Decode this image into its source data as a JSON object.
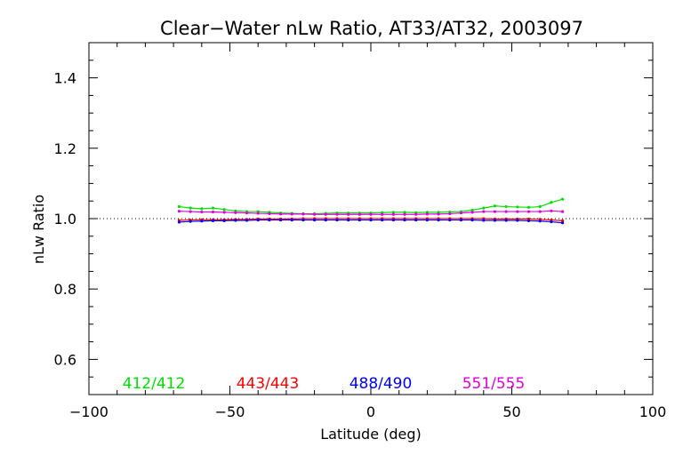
{
  "chart_data": {
    "type": "line",
    "title": "Clear−Water nLw Ratio, AT33/AT32, 2003097",
    "xlabel": "Latitude (deg)",
    "ylabel": "nLw Ratio",
    "xlim": [
      -100,
      100
    ],
    "ylim": [
      0.5,
      1.5
    ],
    "xticks": [
      -100,
      -50,
      0,
      50,
      100
    ],
    "xtick_labels": [
      "−100",
      "−50",
      "0",
      "50",
      "100"
    ],
    "yticks": [
      0.6,
      0.8,
      1.0,
      1.2,
      1.4
    ],
    "ytick_labels": [
      "0.6",
      "0.8",
      "1.0",
      "1.2",
      "1.4"
    ],
    "reference_line": 1.0,
    "grid": false,
    "legend_position": "bottom",
    "x": [
      -68,
      -64,
      -60,
      -56,
      -52,
      -48,
      -44,
      -40,
      -36,
      -32,
      -28,
      -24,
      -20,
      -16,
      -12,
      -8,
      -4,
      0,
      4,
      8,
      12,
      16,
      20,
      24,
      28,
      32,
      36,
      40,
      44,
      48,
      52,
      56,
      60,
      64,
      68
    ],
    "series": [
      {
        "name": "412/412",
        "color": "#00e000",
        "values": [
          1.034,
          1.03,
          1.028,
          1.03,
          1.026,
          1.022,
          1.02,
          1.02,
          1.018,
          1.016,
          1.015,
          1.014,
          1.014,
          1.015,
          1.016,
          1.016,
          1.016,
          1.016,
          1.017,
          1.018,
          1.018,
          1.017,
          1.018,
          1.018,
          1.019,
          1.02,
          1.024,
          1.03,
          1.036,
          1.034,
          1.033,
          1.032,
          1.034,
          1.046,
          1.055
        ]
      },
      {
        "name": "443/443",
        "color": "#ff0000",
        "values": [
          0.995,
          0.996,
          0.997,
          0.997,
          0.997,
          0.998,
          0.998,
          0.999,
          0.999,
          0.999,
          0.999,
          1.0,
          1.0,
          1.0,
          1.0,
          1.0,
          1.0,
          1.0,
          1.0,
          1.0,
          1.0,
          1.0,
          1.0,
          1.0,
          1.0,
          1.0,
          1.0,
          1.0,
          0.999,
          0.999,
          0.999,
          0.999,
          0.998,
          0.996,
          0.994
        ]
      },
      {
        "name": "488/490",
        "color": "#0000ff",
        "values": [
          0.99,
          0.992,
          0.993,
          0.994,
          0.994,
          0.995,
          0.995,
          0.996,
          0.996,
          0.996,
          0.996,
          0.996,
          0.996,
          0.996,
          0.996,
          0.996,
          0.996,
          0.996,
          0.996,
          0.996,
          0.996,
          0.996,
          0.996,
          0.996,
          0.996,
          0.996,
          0.996,
          0.995,
          0.995,
          0.995,
          0.995,
          0.994,
          0.993,
          0.991,
          0.988
        ]
      },
      {
        "name": "551/555",
        "color": "#e000e0",
        "values": [
          1.021,
          1.02,
          1.019,
          1.019,
          1.018,
          1.017,
          1.016,
          1.015,
          1.014,
          1.013,
          1.013,
          1.013,
          1.012,
          1.012,
          1.012,
          1.012,
          1.012,
          1.012,
          1.012,
          1.012,
          1.012,
          1.012,
          1.013,
          1.013,
          1.014,
          1.016,
          1.018,
          1.02,
          1.02,
          1.02,
          1.02,
          1.02,
          1.02,
          1.022,
          1.02
        ]
      }
    ]
  }
}
